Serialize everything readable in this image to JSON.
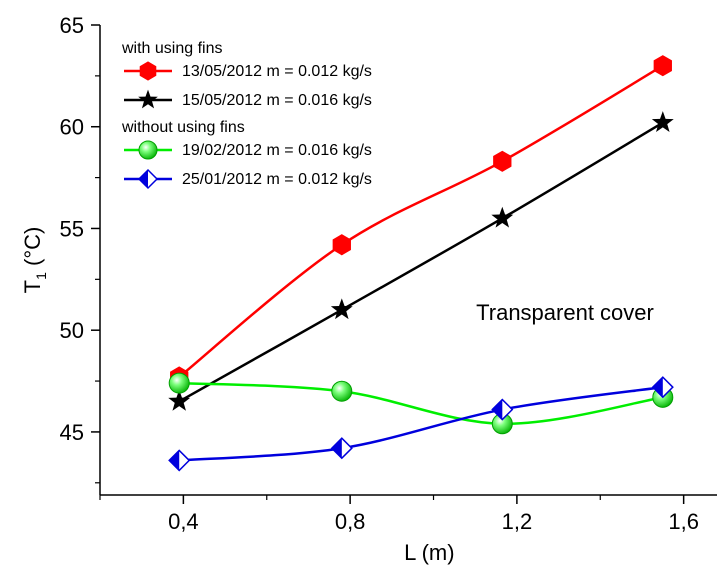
{
  "chart_data": {
    "type": "line",
    "xlabel": "L (m)",
    "ylabel": {
      "main": "T",
      "sub": "1",
      "rest": " (°C)"
    },
    "xlim": [
      0.2,
      1.68
    ],
    "ylim": [
      41.9,
      65
    ],
    "xticks": [
      {
        "value": 0.4,
        "label": "0,4"
      },
      {
        "value": 0.8,
        "label": "0,8"
      },
      {
        "value": 1.2,
        "label": "1,2"
      },
      {
        "value": 1.6,
        "label": "1,6"
      }
    ],
    "yticks": [
      {
        "value": 45,
        "label": "45"
      },
      {
        "value": 50,
        "label": "50"
      },
      {
        "value": 55,
        "label": "55"
      },
      {
        "value": 60,
        "label": "60"
      },
      {
        "value": 65,
        "label": "65"
      }
    ],
    "legend": {
      "position": "top-left",
      "groups": [
        {
          "title": "with using fins",
          "series": [
            0,
            1
          ]
        },
        {
          "title": "without using fins",
          "series": [
            2,
            3
          ]
        }
      ]
    },
    "annotation": "Transparent cover",
    "series": [
      {
        "name": "13/05/2012 m = 0.012 kg/s",
        "color": "#ff0000",
        "marker": "hexagon",
        "x": [
          0.39,
          0.78,
          1.165,
          1.55
        ],
        "y": [
          47.7,
          54.2,
          58.3,
          63.0
        ]
      },
      {
        "name": "15/05/2012 m = 0.016 kg/s",
        "color": "#000000",
        "marker": "star",
        "x": [
          0.39,
          0.78,
          1.165,
          1.55
        ],
        "y": [
          46.5,
          51.0,
          55.5,
          60.2
        ]
      },
      {
        "name": "19/02/2012 m = 0.016 kg/s",
        "color": "#00ee00",
        "marker": "sphere",
        "x": [
          0.39,
          0.78,
          1.165,
          1.55
        ],
        "y": [
          47.4,
          47.0,
          45.4,
          46.7
        ]
      },
      {
        "name": "25/01/2012 m = 0.012 kg/s",
        "color": "#0000dd",
        "marker": "half-diamond",
        "x": [
          0.39,
          0.78,
          1.165,
          1.55
        ],
        "y": [
          43.6,
          44.2,
          46.1,
          47.2
        ]
      }
    ]
  }
}
